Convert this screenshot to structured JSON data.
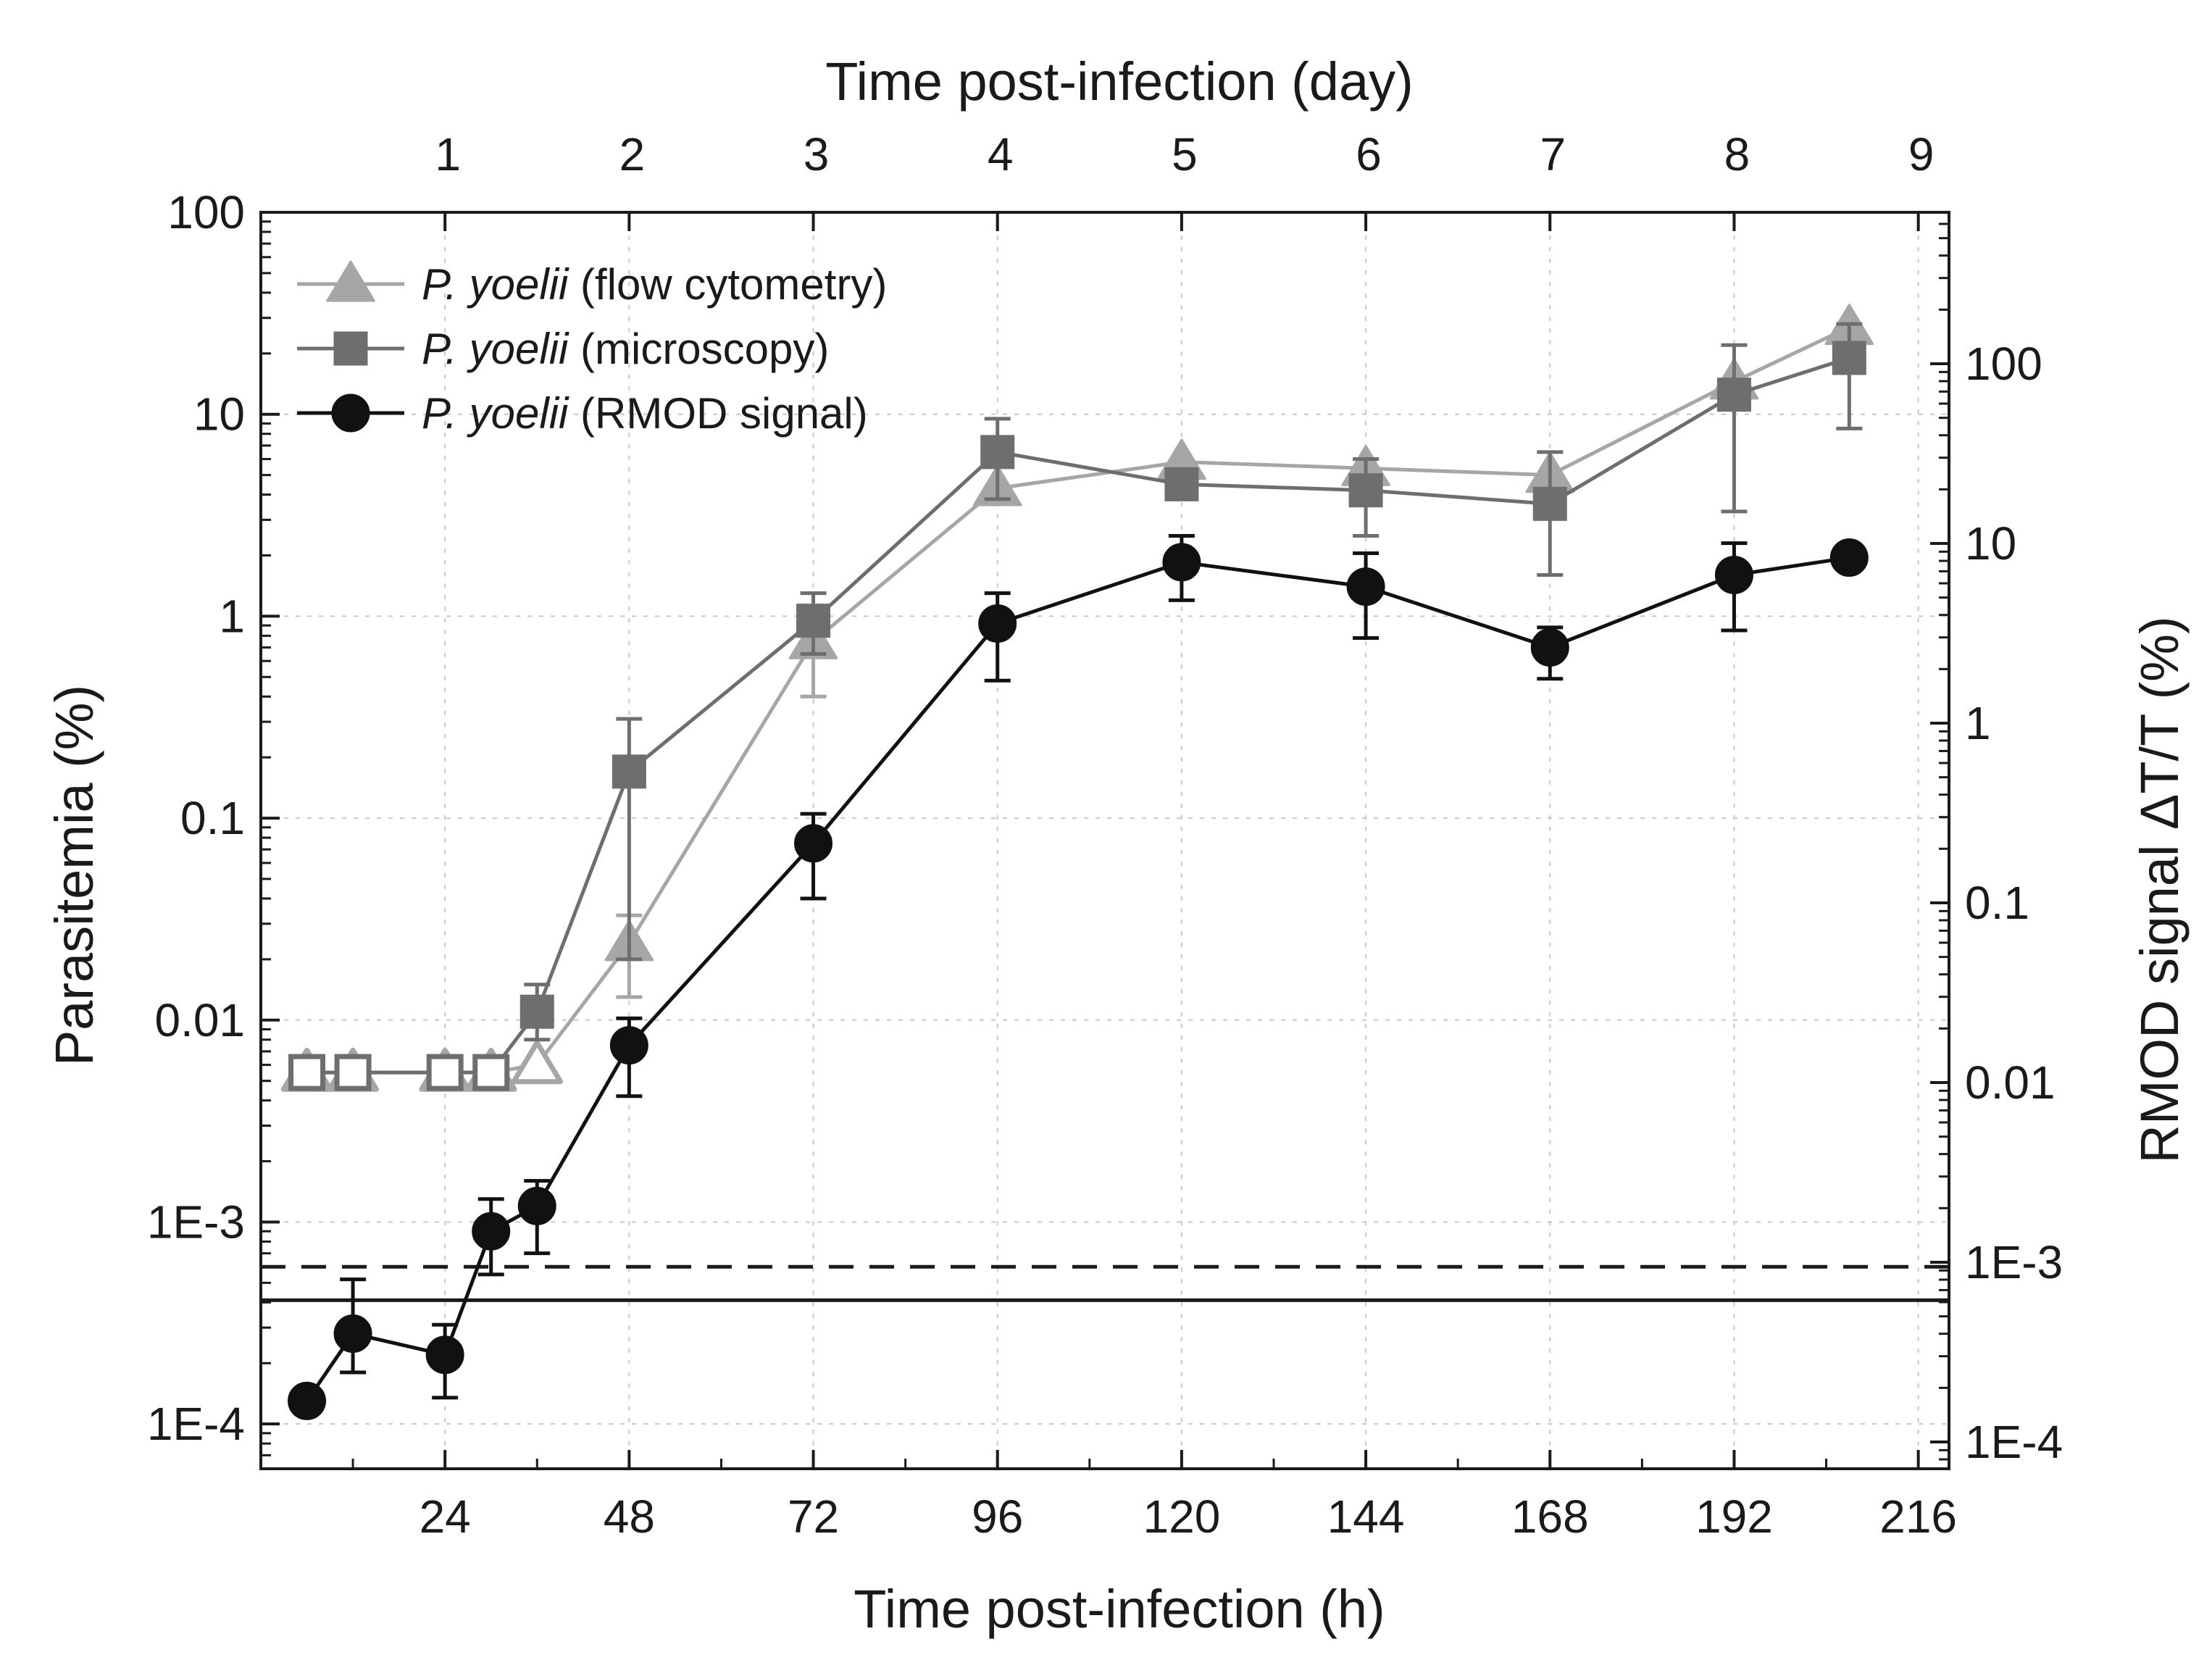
{
  "chart_data": {
    "type": "line",
    "x_bottom": {
      "label": "Time post-infection (h)",
      "range": [
        0,
        220
      ],
      "ticks": [
        24,
        48,
        72,
        96,
        120,
        144,
        168,
        192,
        216
      ],
      "tick_labels": [
        "24",
        "48",
        "72",
        "96",
        "120",
        "144",
        "168",
        "192",
        "216"
      ]
    },
    "x_top": {
      "label": "Time post-infection (day)",
      "ticks": [
        1,
        2,
        3,
        4,
        5,
        6,
        7,
        8,
        9
      ],
      "tick_labels": [
        "1",
        "2",
        "3",
        "4",
        "5",
        "6",
        "7",
        "8",
        "9"
      ]
    },
    "y_left": {
      "label": "Parasitemia (%)",
      "scale": "log",
      "range": [
        6e-05,
        100
      ],
      "ticks": [
        0.0001,
        0.001,
        0.01,
        0.1,
        1,
        10,
        100
      ],
      "tick_labels": [
        "1E-4",
        "1E-3",
        "0.01",
        "0.1",
        "1",
        "10",
        "100"
      ]
    },
    "y_right": {
      "label": "RMOD signal ΔT/T (%)",
      "scale": "log",
      "ticks": [
        0.0001,
        0.001,
        0.01,
        0.1,
        1,
        10,
        100
      ],
      "tick_labels": [
        "1E-4",
        "1E-3",
        "0.01",
        "0.1",
        "1",
        "10",
        "100"
      ]
    },
    "grid": true,
    "legend_position": "top-left",
    "series": [
      {
        "name": "flow",
        "label_italic": "P. yoelii",
        "label_rest": " (flow cytometry)",
        "color": "#a6a6a6",
        "marker": "triangle",
        "x": [
          6,
          12,
          24,
          30,
          36,
          48,
          72,
          96,
          120,
          144,
          168,
          192,
          207
        ],
        "y": [
          0.0055,
          0.0055,
          0.0055,
          0.0055,
          0.006,
          0.024,
          0.75,
          4.3,
          5.8,
          5.4,
          5.0,
          14.5,
          27
        ],
        "err_low": [
          null,
          null,
          null,
          null,
          null,
          0.013,
          0.4,
          null,
          null,
          null,
          null,
          null,
          null
        ],
        "err_high": [
          null,
          null,
          null,
          null,
          null,
          0.033,
          1.1,
          null,
          null,
          null,
          null,
          null,
          null
        ],
        "hollow": [
          true,
          true,
          true,
          true,
          true,
          false,
          false,
          false,
          false,
          false,
          false,
          false,
          false
        ]
      },
      {
        "name": "microscopy",
        "label_italic": "P. yoelii",
        "label_rest": " (microscopy)",
        "color": "#6e6e6e",
        "marker": "square",
        "x": [
          6,
          12,
          24,
          30,
          36,
          48,
          72,
          96,
          120,
          144,
          168,
          192,
          207
        ],
        "y": [
          0.0055,
          0.0055,
          0.0055,
          0.0055,
          0.011,
          0.17,
          0.95,
          6.5,
          4.5,
          4.2,
          3.6,
          12.5,
          19
        ],
        "err_low": [
          null,
          null,
          null,
          null,
          0.008,
          0.02,
          0.65,
          3.8,
          null,
          2.5,
          1.6,
          3.3,
          8.5
        ],
        "err_high": [
          null,
          null,
          null,
          null,
          0.015,
          0.31,
          1.3,
          9.5,
          null,
          6.0,
          6.5,
          22,
          28
        ],
        "hollow": [
          true,
          true,
          true,
          true,
          false,
          false,
          false,
          false,
          false,
          false,
          false,
          false,
          false
        ]
      },
      {
        "name": "rmod",
        "label_italic": "P. yoelii",
        "label_rest": " (RMOD signal)",
        "color": "#111111",
        "marker": "circle",
        "x": [
          6,
          12,
          24,
          30,
          36,
          48,
          72,
          96,
          120,
          144,
          168,
          192,
          207
        ],
        "y": [
          0.00013,
          0.00028,
          0.00022,
          0.0009,
          0.0012,
          0.0075,
          0.075,
          0.92,
          1.85,
          1.4,
          0.7,
          1.6,
          1.95
        ],
        "err_low": [
          null,
          0.00018,
          0.000135,
          0.00055,
          0.0007,
          0.0042,
          0.04,
          0.48,
          1.2,
          0.78,
          0.49,
          0.85,
          null
        ],
        "err_high": [
          null,
          0.00052,
          0.00031,
          0.0013,
          0.0016,
          0.0102,
          0.105,
          1.3,
          2.5,
          2.05,
          0.88,
          2.3,
          null
        ],
        "hollow": [
          false,
          false,
          false,
          false,
          false,
          false,
          false,
          false,
          false,
          false,
          false,
          false,
          false
        ]
      }
    ],
    "reference_lines": [
      {
        "name": "dashed-threshold",
        "y": 0.0006,
        "style": "dashed"
      },
      {
        "name": "solid-threshold",
        "y": 0.00041,
        "style": "solid"
      }
    ]
  }
}
